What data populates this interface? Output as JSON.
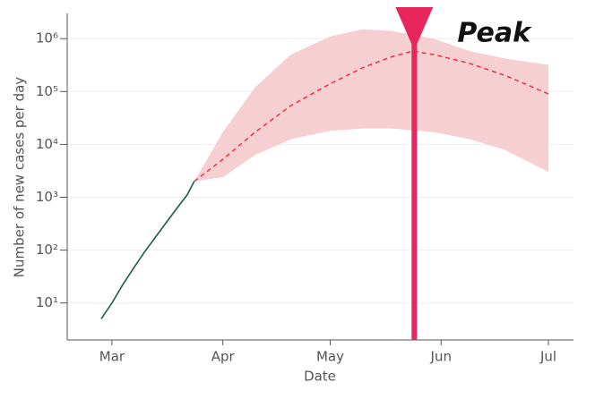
{
  "chart_data": {
    "type": "line",
    "y_label": "Number of new cases per day",
    "x_label": "Date",
    "log_y": true,
    "grid": true,
    "xlim": [
      -12.5,
      129
    ],
    "xticks": [
      {
        "value": 0,
        "label": "Mar"
      },
      {
        "value": 31,
        "label": "Apr"
      },
      {
        "value": 61,
        "label": "May"
      },
      {
        "value": 92,
        "label": "Jun"
      },
      {
        "value": 122,
        "label": "Jul"
      }
    ],
    "ylim": [
      2,
      3000000
    ],
    "yticks": [
      {
        "value": 10,
        "label": "10¹"
      },
      {
        "value": 100,
        "label": "10²"
      },
      {
        "value": 1000,
        "label": "10³"
      },
      {
        "value": 10000,
        "label": "10⁴"
      },
      {
        "value": 100000,
        "label": "10⁵"
      },
      {
        "value": 1000000,
        "label": "10⁶"
      }
    ],
    "band": {
      "color": "#f6cfd3",
      "x": [
        23,
        31,
        40,
        50,
        61,
        70,
        78,
        90,
        100,
        110,
        122
      ],
      "upper": [
        2000,
        17000,
        120000,
        500000,
        1100000,
        1500000,
        1400000,
        1000000,
        580000,
        420000,
        320000
      ],
      "lower": [
        2000,
        2400,
        6300,
        12500,
        18000,
        20000,
        20000,
        17000,
        12500,
        7800,
        3000
      ]
    },
    "series": [
      {
        "color": "#1f5c4a",
        "dash": false,
        "x": [
          -3,
          0,
          3,
          6,
          9,
          12,
          15,
          18,
          21,
          23
        ],
        "values": [
          5,
          10,
          22,
          45,
          90,
          170,
          320,
          600,
          1100,
          2000
        ]
      },
      {
        "color": "#e83a4a",
        "dash": true,
        "x": [
          23,
          31,
          40,
          50,
          61,
          70,
          78,
          84,
          90,
          100,
          110,
          122
        ],
        "values": [
          2000,
          5200,
          17000,
          54000,
          140000,
          280000,
          450000,
          580000,
          500000,
          340000,
          200000,
          90000
        ]
      }
    ],
    "peak": {
      "label": "Peak",
      "x": 84.5,
      "color": "#e8265e"
    }
  }
}
